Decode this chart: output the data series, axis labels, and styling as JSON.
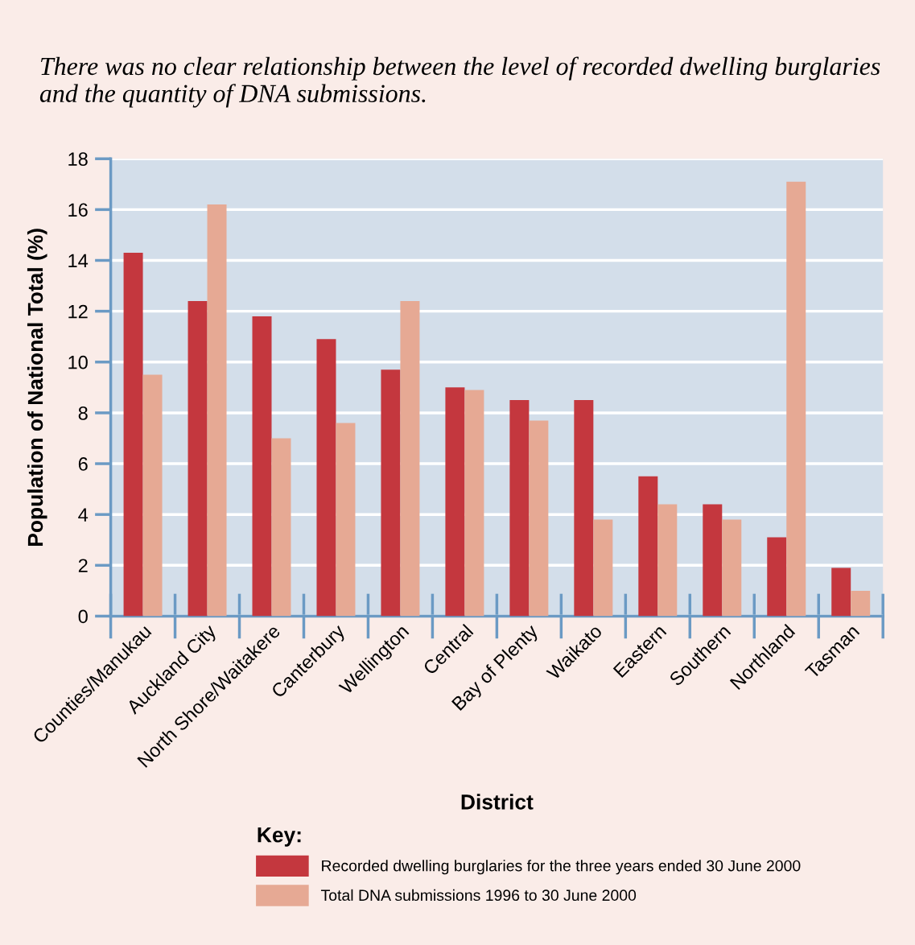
{
  "chart_data": {
    "type": "bar",
    "title": "There was no clear relationship between the level of recorded dwelling burglaries and the quantity of DNA submissions.",
    "xlabel": "District",
    "ylabel": "Population of National Total (%)",
    "legend_title": "Key:",
    "categories": [
      "Counties/Manukau",
      "Auckland City",
      "North Shore/Waitakere",
      "Canterbury",
      "Wellington",
      "Central",
      "Bay of Plenty",
      "Waikato",
      "Eastern",
      "Southern",
      "Northland",
      "Tasman"
    ],
    "series": [
      {
        "name": "Recorded dwelling burglaries for the three years ended 30 June 2000",
        "color": "#c4373e",
        "values": [
          14.3,
          12.4,
          11.8,
          10.9,
          9.7,
          9.0,
          8.5,
          8.5,
          5.5,
          4.4,
          3.1,
          1.9
        ]
      },
      {
        "name": "Total DNA submissions 1996 to 30 June 2000",
        "color": "#e6a994",
        "values": [
          9.5,
          16.2,
          7.0,
          7.6,
          12.4,
          8.9,
          7.7,
          3.8,
          4.4,
          3.8,
          17.1,
          1.0
        ]
      }
    ],
    "ylim": [
      0,
      18
    ],
    "yticks": [
      0,
      2,
      4,
      6,
      8,
      10,
      12,
      14,
      16,
      18
    ],
    "grid": "y",
    "legend": "bottom"
  }
}
